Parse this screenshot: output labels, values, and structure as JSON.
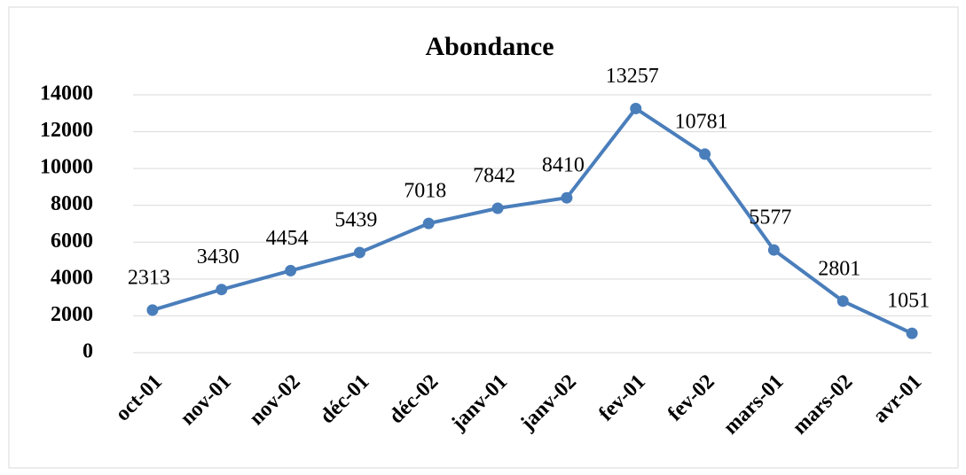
{
  "chart_data": {
    "type": "line",
    "title": "Abondance",
    "categories": [
      "oct-01",
      "nov-01",
      "nov-02",
      "déc-01",
      "déc-02",
      "janv-01",
      "janv-02",
      "fev-01",
      "fev-02",
      "mars-01",
      "mars-02",
      "avr-01"
    ],
    "values": [
      2313,
      3430,
      4454,
      5439,
      7018,
      7842,
      8410,
      13257,
      10781,
      5577,
      2801,
      1051
    ],
    "color": "#4a7ebb",
    "ylim": [
      0,
      14000
    ],
    "yticks": [
      0,
      2000,
      4000,
      6000,
      8000,
      10000,
      12000,
      14000
    ],
    "grid": true
  }
}
